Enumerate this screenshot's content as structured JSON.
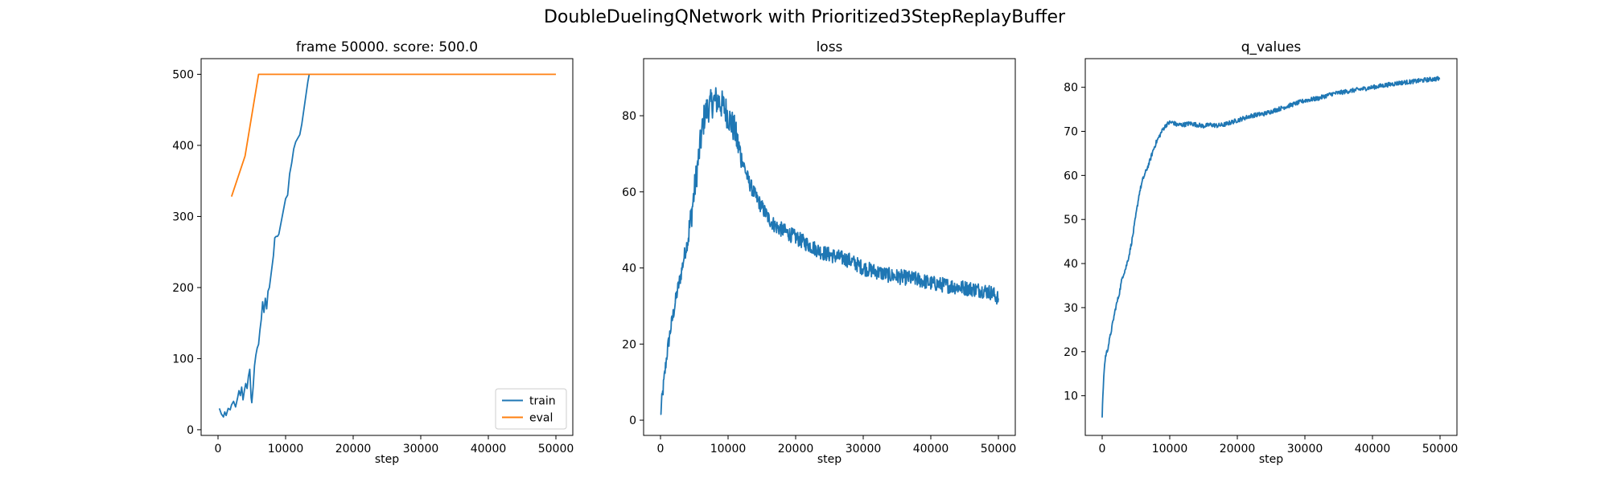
{
  "figure": {
    "suptitle": "DoubleDuelingQNetwork with Prioritized3StepReplayBuffer"
  },
  "chart_data": [
    {
      "type": "line",
      "title": "frame 50000. score: 500.0",
      "xlabel": "step",
      "ylabel": "",
      "xlim": [
        -2500,
        52500
      ],
      "ylim": [
        -8,
        522
      ],
      "xticks": [
        0,
        10000,
        20000,
        30000,
        40000,
        50000
      ],
      "yticks": [
        0,
        100,
        200,
        300,
        400,
        500
      ],
      "grid": false,
      "legend": {
        "position": "lower-right",
        "entries": [
          "train",
          "eval"
        ]
      },
      "series": [
        {
          "name": "train",
          "color": "#1f77b4",
          "x": [
            200,
            500,
            800,
            1000,
            1200,
            1500,
            1800,
            2000,
            2300,
            2600,
            2900,
            3100,
            3300,
            3500,
            3700,
            3900,
            4100,
            4300,
            4500,
            4700,
            4900,
            5000,
            5200,
            5400,
            5600,
            5800,
            6000,
            6200,
            6400,
            6600,
            6800,
            7000,
            7200,
            7400,
            7600,
            7800,
            8000,
            8200,
            8400,
            8600,
            8800,
            9000,
            9200,
            9400,
            9600,
            9800,
            10000,
            10300,
            10600,
            10900,
            11200,
            11500,
            11800,
            12100,
            12400,
            12700,
            13000,
            13300,
            13500
          ],
          "y": [
            30,
            22,
            18,
            25,
            20,
            30,
            28,
            35,
            40,
            32,
            45,
            55,
            48,
            60,
            42,
            55,
            65,
            58,
            75,
            85,
            45,
            38,
            60,
            90,
            105,
            115,
            120,
            140,
            155,
            180,
            165,
            185,
            170,
            195,
            200,
            215,
            230,
            245,
            270,
            272,
            272,
            275,
            285,
            295,
            305,
            315,
            325,
            330,
            360,
            375,
            395,
            405,
            410,
            415,
            430,
            450,
            470,
            490,
            500
          ]
        },
        {
          "name": "eval",
          "color": "#ff7f0e",
          "x": [
            2000,
            4000,
            6000,
            8000,
            10000,
            20000,
            30000,
            40000,
            50000
          ],
          "y": [
            328,
            385,
            500,
            500,
            500,
            500,
            500,
            500,
            500
          ]
        }
      ]
    },
    {
      "type": "line",
      "title": "loss",
      "xlabel": "step",
      "ylabel": "",
      "xlim": [
        -2500,
        52500
      ],
      "ylim": [
        -4,
        95
      ],
      "xticks": [
        0,
        10000,
        20000,
        30000,
        40000,
        50000
      ],
      "yticks": [
        0,
        20,
        40,
        60,
        80
      ],
      "grid": false,
      "series": [
        {
          "name": "",
          "color": "#1f77b4",
          "x": [
            0,
            200,
            500,
            800,
            1000,
            1500,
            2000,
            2500,
            3000,
            3500,
            4000,
            4500,
            5000,
            5500,
            6000,
            6500,
            7000,
            7500,
            8000,
            8500,
            9000,
            9500,
            10000,
            10500,
            11000,
            11500,
            12000,
            12500,
            13000,
            14000,
            15000,
            16000,
            17000,
            18000,
            19000,
            20000,
            22000,
            24000,
            26000,
            28000,
            30000,
            32000,
            34000,
            36000,
            38000,
            40000,
            42000,
            44000,
            46000,
            48000,
            49000,
            50000
          ],
          "y": [
            1,
            5,
            10,
            15,
            18,
            24,
            29,
            34,
            38,
            43,
            47,
            53,
            60,
            67,
            74,
            80,
            82,
            83,
            84,
            84,
            83,
            82,
            80,
            78,
            76,
            72,
            69,
            66,
            63,
            59,
            56,
            53,
            51,
            50,
            49,
            48,
            46,
            44,
            43,
            42,
            40,
            39,
            38,
            37.5,
            37,
            36,
            35.5,
            35,
            34.5,
            34,
            33.5,
            32
          ]
        }
      ]
    },
    {
      "type": "line",
      "title": "q_values",
      "xlabel": "step",
      "ylabel": "",
      "xlim": [
        -2500,
        52500
      ],
      "ylim": [
        1,
        86.5
      ],
      "xticks": [
        0,
        10000,
        20000,
        30000,
        40000,
        50000
      ],
      "yticks": [
        10,
        20,
        30,
        40,
        50,
        60,
        70,
        80
      ],
      "grid": false,
      "series": [
        {
          "name": "",
          "color": "#1f77b4",
          "x": [
            0,
            100,
            300,
            500,
            800,
            1000,
            1500,
            2000,
            2500,
            3000,
            3500,
            4000,
            4500,
            5000,
            5500,
            6000,
            6500,
            7000,
            7500,
            8000,
            8500,
            9000,
            9500,
            10000,
            10500,
            11000,
            12000,
            13000,
            14000,
            15000,
            16000,
            17000,
            18000,
            19000,
            20000,
            21000,
            22000,
            23000,
            24000,
            25000,
            26000,
            27000,
            28000,
            30000,
            32000,
            34000,
            36000,
            38000,
            40000,
            42000,
            44000,
            46000,
            48000,
            50000
          ],
          "y": [
            5,
            10,
            16,
            19,
            20.5,
            22,
            26,
            30,
            33,
            37,
            39,
            42,
            46,
            51,
            56,
            59,
            61,
            63,
            65.5,
            67.5,
            69,
            70.5,
            71.5,
            72,
            72,
            71.5,
            71.5,
            71.8,
            71.5,
            71.2,
            71.5,
            71.3,
            71.5,
            72,
            72.5,
            73,
            73.5,
            73.8,
            74,
            74.5,
            75,
            75.5,
            76,
            77,
            77.5,
            78.5,
            79,
            79.5,
            80,
            80.5,
            81,
            81.3,
            81.7,
            82
          ]
        }
      ]
    }
  ]
}
